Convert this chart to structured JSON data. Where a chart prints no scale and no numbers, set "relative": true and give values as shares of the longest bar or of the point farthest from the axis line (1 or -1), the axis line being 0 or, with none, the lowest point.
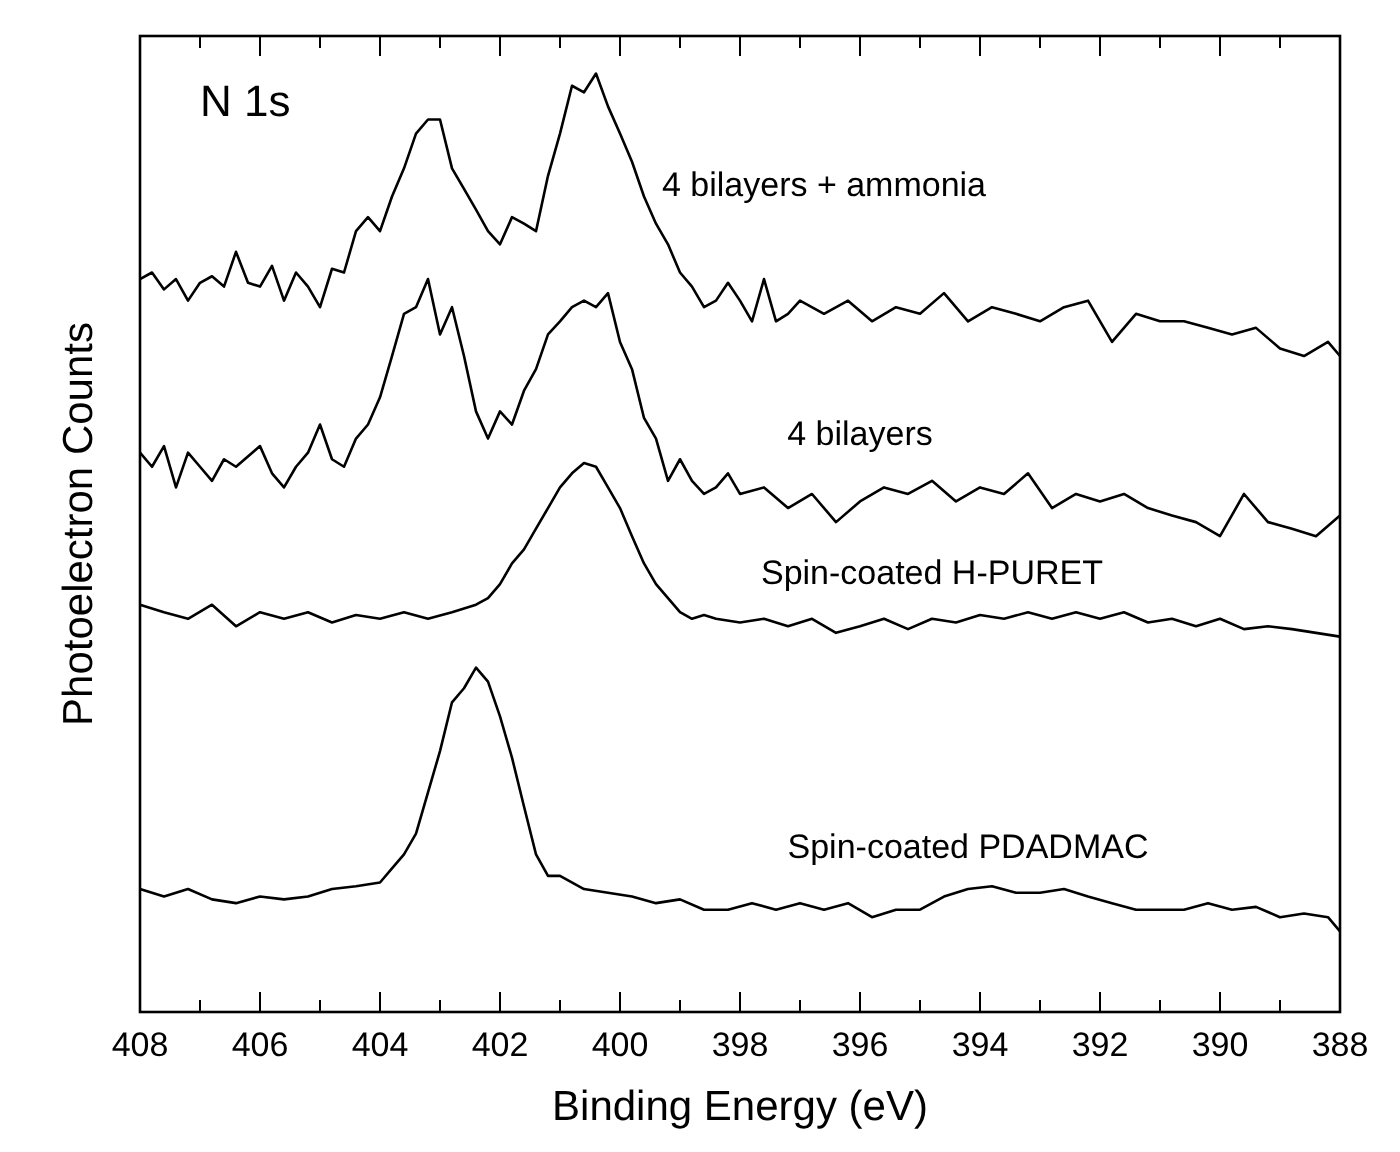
{
  "chart_data": {
    "type": "line",
    "xlabel": "Binding Energy (eV)",
    "ylabel": "Photoelectron Counts",
    "annotations": [
      "N 1s"
    ],
    "relative": true,
    "xlim": [
      408,
      388
    ],
    "xticks": [
      408,
      {
        "value": 407,
        "label": null
      },
      406,
      {
        "value": 405,
        "label": null
      },
      404,
      {
        "value": 403,
        "label": null
      },
      402,
      {
        "value": 401,
        "label": null
      },
      400,
      {
        "value": 399,
        "label": null
      },
      398,
      {
        "value": 397,
        "label": null
      },
      396,
      {
        "value": 395,
        "label": null
      },
      394,
      {
        "value": 393,
        "label": null
      },
      392,
      {
        "value": 391,
        "label": null
      },
      390,
      {
        "value": 389,
        "label": null
      },
      388
    ],
    "grid": false,
    "marker": "none",
    "line_style": "solid",
    "series": [
      {
        "name": "4 bilayers + ammonia",
        "color": "#000000",
        "x": [
          408,
          407.8,
          407.6,
          407.4,
          407.2,
          407,
          406.8,
          406.6,
          406.4,
          406.2,
          406,
          405.8,
          405.6,
          405.4,
          405.2,
          405,
          404.8,
          404.6,
          404.4,
          404.2,
          404,
          403.8,
          403.6,
          403.4,
          403.2,
          403,
          402.8,
          402.6,
          402.4,
          402.2,
          402,
          401.8,
          401.6,
          401.4,
          401.2,
          401,
          400.8,
          400.6,
          400.4,
          400.2,
          400,
          399.8,
          399.6,
          399.4,
          399.2,
          399,
          398.8,
          398.6,
          398.4,
          398.2,
          398,
          397.8,
          397.6,
          397.4,
          397.2,
          397,
          396.6,
          396.2,
          395.8,
          395.4,
          395,
          394.6,
          394.2,
          393.8,
          393.4,
          393,
          392.6,
          392.2,
          391.8,
          391.4,
          391,
          390.6,
          390.2,
          389.8,
          389.4,
          389,
          388.6,
          388.2,
          388
        ],
        "values": [
          0.781,
          0.788,
          0.77,
          0.781,
          0.758,
          0.777,
          0.784,
          0.773,
          0.81,
          0.777,
          0.773,
          0.795,
          0.758,
          0.788,
          0.773,
          0.751,
          0.792,
          0.788,
          0.832,
          0.847,
          0.832,
          0.869,
          0.899,
          0.936,
          0.951,
          0.951,
          0.899,
          0.877,
          0.855,
          0.832,
          0.818,
          0.847,
          0.84,
          0.832,
          0.891,
          0.936,
          0.987,
          0.98,
          1,
          0.965,
          0.936,
          0.906,
          0.869,
          0.84,
          0.818,
          0.788,
          0.773,
          0.751,
          0.758,
          0.777,
          0.758,
          0.736,
          0.781,
          0.736,
          0.744,
          0.758,
          0.744,
          0.758,
          0.736,
          0.751,
          0.744,
          0.766,
          0.736,
          0.751,
          0.744,
          0.736,
          0.751,
          0.758,
          0.714,
          0.744,
          0.736,
          0.736,
          0.729,
          0.722,
          0.729,
          0.707,
          0.699,
          0.714,
          0.699
        ]
      },
      {
        "name": "4 bilayers",
        "color": "#000000",
        "x": [
          408,
          407.8,
          407.6,
          407.4,
          407.2,
          407,
          406.8,
          406.6,
          406.4,
          406,
          405.8,
          405.6,
          405.4,
          405.2,
          405,
          404.8,
          404.6,
          404.4,
          404.2,
          404,
          403.8,
          403.6,
          403.4,
          403.2,
          403,
          402.8,
          402.6,
          402.4,
          402.2,
          402,
          401.8,
          401.6,
          401.4,
          401.2,
          401,
          400.8,
          400.6,
          400.4,
          400.2,
          400,
          399.8,
          399.6,
          399.4,
          399.2,
          399,
          398.8,
          398.6,
          398.4,
          398.2,
          398,
          397.6,
          397.2,
          396.8,
          396.4,
          396,
          395.6,
          395.2,
          394.8,
          394.4,
          394,
          393.6,
          393.2,
          392.8,
          392.4,
          392,
          391.6,
          391.2,
          390.8,
          390.4,
          390,
          389.6,
          389.2,
          388.8,
          388.4,
          388
        ],
        "values": [
          0.596,
          0.581,
          0.603,
          0.559,
          0.596,
          0.581,
          0.566,
          0.589,
          0.581,
          0.603,
          0.574,
          0.559,
          0.581,
          0.596,
          0.626,
          0.589,
          0.581,
          0.611,
          0.626,
          0.655,
          0.699,
          0.744,
          0.751,
          0.781,
          0.722,
          0.751,
          0.699,
          0.64,
          0.611,
          0.64,
          0.626,
          0.662,
          0.685,
          0.722,
          0.736,
          0.751,
          0.758,
          0.751,
          0.766,
          0.714,
          0.685,
          0.633,
          0.611,
          0.566,
          0.589,
          0.566,
          0.552,
          0.559,
          0.574,
          0.552,
          0.559,
          0.537,
          0.552,
          0.522,
          0.544,
          0.559,
          0.552,
          0.566,
          0.544,
          0.559,
          0.552,
          0.574,
          0.537,
          0.552,
          0.544,
          0.552,
          0.537,
          0.529,
          0.522,
          0.507,
          0.552,
          0.522,
          0.515,
          0.507,
          0.529
        ]
      },
      {
        "name": "Spin-coated H-PURET",
        "color": "#000000",
        "x": [
          408,
          407.6,
          407.2,
          406.8,
          406.4,
          406,
          405.6,
          405.2,
          404.8,
          404.4,
          404,
          403.6,
          403.2,
          402.8,
          402.4,
          402.2,
          402,
          401.8,
          401.6,
          401.4,
          401.2,
          401,
          400.8,
          400.6,
          400.4,
          400.2,
          400,
          399.8,
          399.6,
          399.4,
          399.2,
          399,
          398.8,
          398.6,
          398.4,
          398,
          397.6,
          397.2,
          396.8,
          396.4,
          396,
          395.6,
          395.2,
          394.8,
          394.4,
          394,
          393.6,
          393.2,
          392.8,
          392.4,
          392,
          391.6,
          391.2,
          390.8,
          390.4,
          390,
          389.6,
          389.2,
          388.8,
          388.4,
          388
        ],
        "values": [
          0.434,
          0.426,
          0.419,
          0.434,
          0.411,
          0.426,
          0.419,
          0.426,
          0.415,
          0.423,
          0.419,
          0.426,
          0.419,
          0.426,
          0.434,
          0.441,
          0.456,
          0.478,
          0.493,
          0.515,
          0.537,
          0.559,
          0.574,
          0.585,
          0.581,
          0.559,
          0.537,
          0.507,
          0.478,
          0.456,
          0.441,
          0.426,
          0.419,
          0.423,
          0.419,
          0.415,
          0.419,
          0.411,
          0.419,
          0.404,
          0.411,
          0.419,
          0.408,
          0.419,
          0.415,
          0.423,
          0.419,
          0.426,
          0.419,
          0.426,
          0.419,
          0.426,
          0.415,
          0.419,
          0.411,
          0.419,
          0.408,
          0.411,
          0.408,
          0.404,
          0.4
        ]
      },
      {
        "name": "Spin-coated PDADMAC",
        "color": "#000000",
        "x": [
          408,
          407.6,
          407.2,
          406.8,
          406.4,
          406,
          405.6,
          405.2,
          404.8,
          404.4,
          404,
          403.8,
          403.6,
          403.4,
          403.2,
          403,
          402.8,
          402.6,
          402.4,
          402.2,
          402,
          401.8,
          401.6,
          401.4,
          401.2,
          401,
          400.6,
          400.2,
          399.8,
          399.4,
          399,
          398.6,
          398.2,
          397.8,
          397.4,
          397,
          396.6,
          396.2,
          395.8,
          395.4,
          395,
          394.6,
          394.2,
          393.8,
          393.4,
          393,
          392.6,
          392.2,
          391.8,
          391.4,
          391,
          390.6,
          390.2,
          389.8,
          389.4,
          389,
          388.6,
          388.2,
          388
        ],
        "values": [
          0.131,
          0.123,
          0.131,
          0.12,
          0.116,
          0.123,
          0.12,
          0.123,
          0.131,
          0.134,
          0.138,
          0.153,
          0.168,
          0.19,
          0.234,
          0.278,
          0.33,
          0.345,
          0.367,
          0.352,
          0.315,
          0.271,
          0.219,
          0.168,
          0.145,
          0.145,
          0.131,
          0.127,
          0.123,
          0.116,
          0.12,
          0.109,
          0.109,
          0.116,
          0.109,
          0.116,
          0.109,
          0.116,
          0.101,
          0.109,
          0.109,
          0.123,
          0.131,
          0.134,
          0.127,
          0.127,
          0.131,
          0.123,
          0.116,
          0.109,
          0.109,
          0.109,
          0.116,
          0.109,
          0.112,
          0.101,
          0.105,
          0.101,
          0.086
        ]
      }
    ]
  }
}
